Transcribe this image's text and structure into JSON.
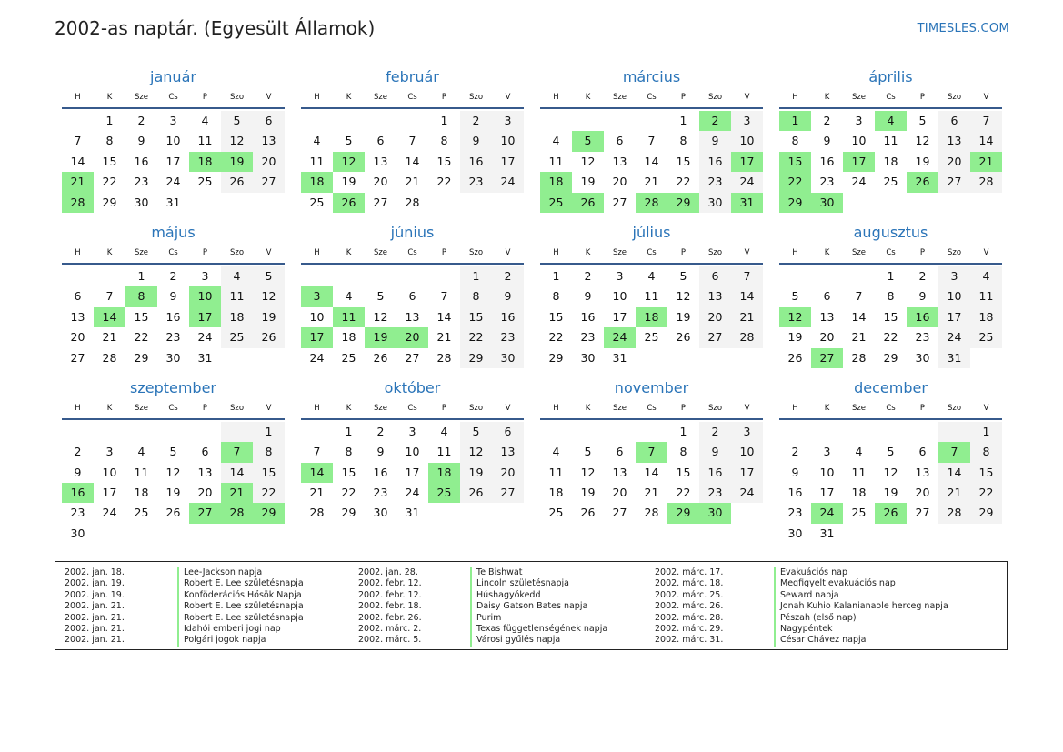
{
  "header": {
    "title": "2002-as naptár. (Egyesült Államok)",
    "site": "TIMESLES.COM"
  },
  "weekdays": [
    "H",
    "K",
    "Sze",
    "Cs",
    "P",
    "Szo",
    "V"
  ],
  "months": [
    {
      "name": "január",
      "offset": 1,
      "days": 31,
      "holidays": [
        18,
        19,
        21,
        28
      ]
    },
    {
      "name": "február",
      "offset": 4,
      "days": 28,
      "holidays": [
        12,
        18,
        26
      ]
    },
    {
      "name": "március",
      "offset": 4,
      "days": 31,
      "holidays": [
        2,
        5,
        17,
        18,
        25,
        26,
        28,
        29,
        31
      ]
    },
    {
      "name": "április",
      "offset": 0,
      "days": 30,
      "holidays": [
        1,
        4,
        15,
        17,
        21,
        22,
        26,
        29,
        30
      ]
    },
    {
      "name": "május",
      "offset": 2,
      "days": 31,
      "holidays": [
        8,
        10,
        14,
        17
      ]
    },
    {
      "name": "június",
      "offset": 5,
      "days": 30,
      "holidays": [
        3,
        11,
        17,
        19,
        20
      ]
    },
    {
      "name": "július",
      "offset": 0,
      "days": 31,
      "holidays": [
        18,
        24
      ]
    },
    {
      "name": "augusztus",
      "offset": 3,
      "days": 31,
      "holidays": [
        12,
        16,
        27
      ]
    },
    {
      "name": "szeptember",
      "offset": 6,
      "days": 30,
      "holidays": [
        7,
        16,
        21,
        27,
        28,
        29
      ]
    },
    {
      "name": "október",
      "offset": 1,
      "days": 31,
      "holidays": [
        14,
        18,
        25
      ]
    },
    {
      "name": "november",
      "offset": 4,
      "days": 30,
      "holidays": [
        7,
        29,
        30
      ]
    },
    {
      "name": "december",
      "offset": 6,
      "days": 31,
      "holidays": [
        7,
        24,
        26
      ]
    }
  ],
  "holiday_columns": [
    [
      {
        "date": "2002. jan. 18.",
        "name": "Lee-Jackson napja"
      },
      {
        "date": "2002. jan. 19.",
        "name": "Robert E. Lee születésnapja"
      },
      {
        "date": "2002. jan. 19.",
        "name": "Konföderációs Hősök Napja"
      },
      {
        "date": "2002. jan. 21.",
        "name": "Robert E. Lee születésnapja"
      },
      {
        "date": "2002. jan. 21.",
        "name": "Robert E. Lee születésnapja"
      },
      {
        "date": "2002. jan. 21.",
        "name": "Idahói emberi jogi nap"
      },
      {
        "date": "2002. jan. 21.",
        "name": "Polgári jogok napja"
      }
    ],
    [
      {
        "date": "2002. jan. 28.",
        "name": "Te Bishwat"
      },
      {
        "date": "2002. febr. 12.",
        "name": "Lincoln születésnapja"
      },
      {
        "date": "2002. febr. 12.",
        "name": "Húshagyókedd"
      },
      {
        "date": "2002. febr. 18.",
        "name": "Daisy Gatson Bates napja"
      },
      {
        "date": "2002. febr. 26.",
        "name": "Purim"
      },
      {
        "date": "2002. márc. 2.",
        "name": "Texas függetlenségének napja"
      },
      {
        "date": "2002. márc. 5.",
        "name": "Városi gyűlés napja"
      }
    ],
    [
      {
        "date": "2002. márc. 17.",
        "name": "Evakuációs nap"
      },
      {
        "date": "2002. márc. 18.",
        "name": "Megfigyelt evakuációs nap"
      },
      {
        "date": "2002. márc. 25.",
        "name": "Seward napja"
      },
      {
        "date": "2002. márc. 26.",
        "name": "Jonah Kuhio Kalanianaole herceg napja"
      },
      {
        "date": "2002. márc. 28.",
        "name": "Pészah (első nap)"
      },
      {
        "date": "2002. márc. 29.",
        "name": "Nagypéntek"
      },
      {
        "date": "2002. márc. 31.",
        "name": "César Chávez napja"
      }
    ]
  ],
  "colors": {
    "holiday": "#90ee90",
    "weekend": "#f3f3f3",
    "accent": "#2a74b8",
    "rule": "#375a8c"
  }
}
